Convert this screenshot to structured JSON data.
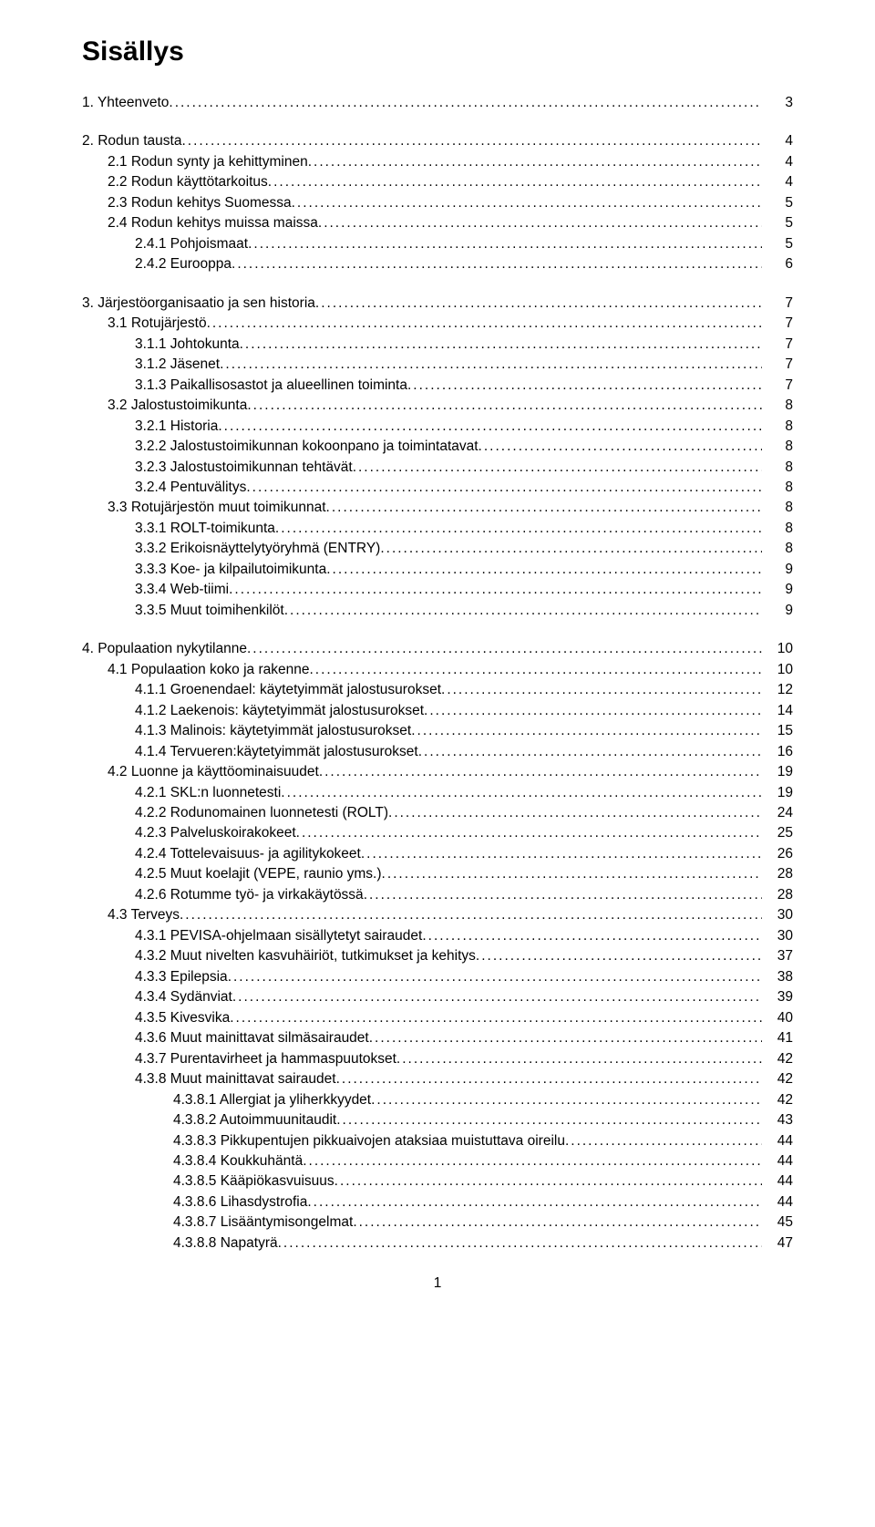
{
  "title": "Sisällys",
  "page_number": "1",
  "fonts": {
    "title_size_pt": 22,
    "body_size_pt": 12
  },
  "colors": {
    "text": "#000000",
    "background": "#ffffff"
  },
  "blocks": [
    {
      "rows": [
        {
          "indent": 0,
          "label": "1. Yhteenveto",
          "page": "3"
        }
      ]
    },
    {
      "rows": [
        {
          "indent": 0,
          "label": "2. Rodun tausta",
          "page": "4"
        },
        {
          "indent": 1,
          "label": "2.1 Rodun synty ja kehittyminen",
          "page": "4"
        },
        {
          "indent": 1,
          "label": "2.2 Rodun käyttötarkoitus",
          "page": "4"
        },
        {
          "indent": 1,
          "label": "2.3 Rodun kehitys Suomessa",
          "page": "5"
        },
        {
          "indent": 1,
          "label": "2.4 Rodun kehitys muissa maissa",
          "page": "5"
        },
        {
          "indent": 2,
          "label": "2.4.1 Pohjoismaat",
          "page": "5"
        },
        {
          "indent": 2,
          "label": "2.4.2 Eurooppa",
          "page": "6"
        }
      ]
    },
    {
      "rows": [
        {
          "indent": 0,
          "label": "3. Järjestöorganisaatio ja sen historia",
          "page": "7"
        },
        {
          "indent": 1,
          "label": "3.1 Rotujärjestö",
          "page": "7"
        },
        {
          "indent": 2,
          "label": "3.1.1 Johtokunta",
          "page": "7"
        },
        {
          "indent": 2,
          "label": "3.1.2 Jäsenet",
          "page": "7"
        },
        {
          "indent": 2,
          "label": "3.1.3 Paikallisosastot ja alueellinen toiminta",
          "page": "7"
        },
        {
          "indent": 1,
          "label": "3.2 Jalostustoimikunta",
          "page": "8"
        },
        {
          "indent": 2,
          "label": "3.2.1 Historia",
          "page": "8"
        },
        {
          "indent": 2,
          "label": "3.2.2 Jalostustoimikunnan kokoonpano ja toimintatavat",
          "page": "8"
        },
        {
          "indent": 2,
          "label": "3.2.3 Jalostustoimikunnan tehtävät",
          "page": "8"
        },
        {
          "indent": 2,
          "label": "3.2.4 Pentuvälitys",
          "page": "8"
        },
        {
          "indent": 1,
          "label": "3.3 Rotujärjestön muut toimikunnat",
          "page": "8"
        },
        {
          "indent": 2,
          "label": "3.3.1 ROLT-toimikunta",
          "page": "8"
        },
        {
          "indent": 2,
          "label": "3.3.2 Erikoisnäyttelytyöryhmä (ENTRY)",
          "page": "8"
        },
        {
          "indent": 2,
          "label": "3.3.3 Koe- ja kilpailutoimikunta",
          "page": "9"
        },
        {
          "indent": 2,
          "label": "3.3.4 Web-tiimi",
          "page": "9"
        },
        {
          "indent": 2,
          "label": "3.3.5 Muut toimihenkilöt",
          "page": "9"
        }
      ]
    },
    {
      "rows": [
        {
          "indent": 0,
          "label": "4. Populaation nykytilanne",
          "page": "10"
        },
        {
          "indent": 1,
          "label": "4.1 Populaation koko ja rakenne",
          "page": "10"
        },
        {
          "indent": 2,
          "label": "4.1.1 Groenendael: käytetyimmät jalostusurokset",
          "page": "12"
        },
        {
          "indent": 2,
          "label": "4.1.2 Laekenois: käytetyimmät jalostusurokset",
          "page": "14"
        },
        {
          "indent": 2,
          "label": "4.1.3 Malinois: käytetyimmät jalostusurokset",
          "page": "15"
        },
        {
          "indent": 2,
          "label": "4.1.4 Tervueren:käytetyimmät jalostusurokset",
          "page": "16"
        },
        {
          "indent": 1,
          "label": "4.2 Luonne ja käyttöominaisuudet",
          "page": "19"
        },
        {
          "indent": 2,
          "label": "4.2.1 SKL:n luonnetesti",
          "page": "19"
        },
        {
          "indent": 2,
          "label": "4.2.2 Rodunomainen luonnetesti (ROLT)",
          "page": "24"
        },
        {
          "indent": 2,
          "label": "4.2.3 Palveluskoirakokeet",
          "page": "25"
        },
        {
          "indent": 2,
          "label": "4.2.4 Tottelevaisuus- ja agilitykokeet",
          "page": "26"
        },
        {
          "indent": 2,
          "label": "4.2.5 Muut koelajit (VEPE, raunio yms.)",
          "page": "28"
        },
        {
          "indent": 2,
          "label": "4.2.6 Rotumme työ- ja virkakäytössä",
          "page": "28"
        },
        {
          "indent": 1,
          "label": "4.3 Terveys",
          "page": "30"
        },
        {
          "indent": 2,
          "label": "4.3.1 PEVISA-ohjelmaan sisällytetyt sairaudet",
          "page": "30"
        },
        {
          "indent": 2,
          "label": "4.3.2 Muut nivelten kasvuhäiriöt, tutkimukset ja kehitys",
          "page": "37"
        },
        {
          "indent": 2,
          "label": "4.3.3 Epilepsia",
          "page": "38"
        },
        {
          "indent": 2,
          "label": "4.3.4 Sydänviat",
          "page": "39"
        },
        {
          "indent": 2,
          "label": "4.3.5 Kivesvika",
          "page": "40"
        },
        {
          "indent": 2,
          "label": "4.3.6 Muut mainittavat silmäsairaudet",
          "page": "41"
        },
        {
          "indent": 2,
          "label": "4.3.7 Purentavirheet ja hammaspuutokset",
          "page": "42"
        },
        {
          "indent": 2,
          "label": "4.3.8 Muut mainittavat sairaudet",
          "page": "42"
        },
        {
          "indent": 3,
          "label": "4.3.8.1 Allergiat ja yliherkkyydet",
          "page": "42"
        },
        {
          "indent": 3,
          "label": "4.3.8.2 Autoimmuunitaudit",
          "page": "43"
        },
        {
          "indent": 3,
          "label": "4.3.8.3 Pikkupentujen pikkuaivojen ataksiaa muistuttava oireilu",
          "page": "44"
        },
        {
          "indent": 3,
          "label": "4.3.8.4 Koukkuhäntä",
          "page": "44"
        },
        {
          "indent": 3,
          "label": "4.3.8.5 Kääpiökasvuisuus",
          "page": "44"
        },
        {
          "indent": 3,
          "label": "4.3.8.6 Lihasdystrofia",
          "page": "44"
        },
        {
          "indent": 3,
          "label": "4.3.8.7 Lisääntymisongelmat",
          "page": "45"
        },
        {
          "indent": 3,
          "label": "4.3.8.8 Napatyrä",
          "page": "47"
        }
      ]
    }
  ]
}
